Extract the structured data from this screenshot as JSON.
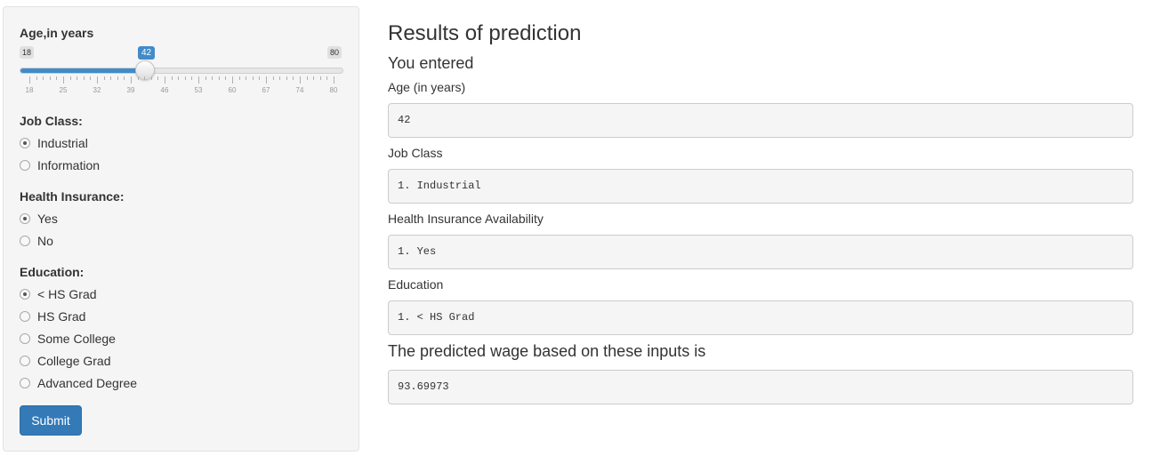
{
  "sidebar": {
    "age": {
      "label": "Age,in years",
      "min": "18",
      "max": "80",
      "value": "42",
      "value_fraction": 0.387,
      "tick_labels": [
        "18",
        "25",
        "32",
        "39",
        "46",
        "53",
        "60",
        "67",
        "74",
        "80"
      ],
      "fill_color": "#428bca"
    },
    "job_class": {
      "label": "Job Class:",
      "options": [
        "Industrial",
        "Information"
      ],
      "selected": "Industrial"
    },
    "health_insurance": {
      "label": "Health Insurance:",
      "options": [
        "Yes",
        "No"
      ],
      "selected": "Yes"
    },
    "education": {
      "label": "Education:",
      "options": [
        "< HS Grad",
        "HS Grad",
        "Some College",
        "College Grad",
        "Advanced Degree"
      ],
      "selected": "< HS Grad"
    },
    "submit_label": "Submit"
  },
  "main": {
    "title": "Results of prediction",
    "subtitle": "You entered",
    "fields": [
      {
        "label": "Age (in years)",
        "value": "42"
      },
      {
        "label": "Job Class",
        "value": "1. Industrial"
      },
      {
        "label": "Health Insurance Availability",
        "value": "1. Yes"
      },
      {
        "label": "Education",
        "value": "1. < HS Grad"
      }
    ],
    "prediction_label": "The predicted wage based on these inputs is",
    "prediction_value": "93.69973"
  },
  "colors": {
    "primary_button": "#337ab7",
    "slider_accent": "#428bca",
    "panel_background": "#f5f5f5"
  }
}
